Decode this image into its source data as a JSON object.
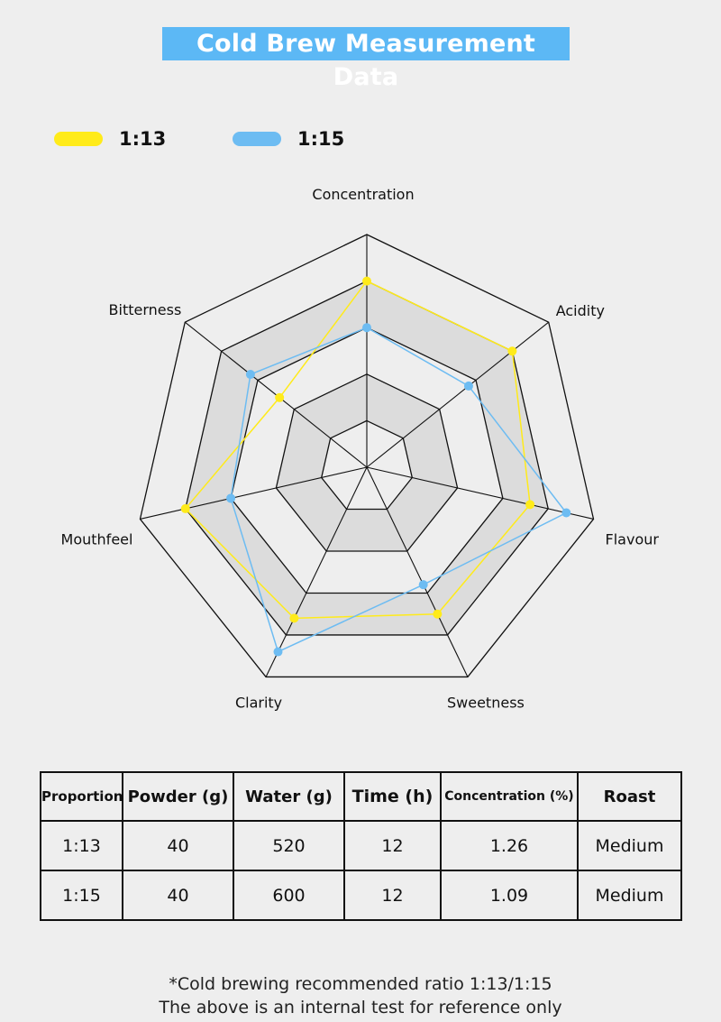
{
  "title": "Cold Brew Measurement Data",
  "legend": [
    {
      "label": "1:13",
      "color": "#ffeb1a"
    },
    {
      "label": "1:15",
      "color": "#6dbcf2"
    }
  ],
  "chart_data": {
    "type": "radar",
    "axes": [
      "Concentration",
      "Acidity",
      "Flavour",
      "Sweetness",
      "Clarity",
      "Mouthfeel",
      "Bitterness"
    ],
    "levels": 5,
    "alternating_band_fill": "#dcdcdc",
    "series": [
      {
        "name": "1:13",
        "color": "#ffeb1a",
        "values": [
          4.0,
          4.0,
          3.6,
          3.5,
          3.6,
          4.0,
          2.4
        ]
      },
      {
        "name": "1:15",
        "color": "#6dbcf2",
        "values": [
          3.0,
          2.8,
          4.4,
          2.8,
          4.4,
          3.0,
          3.2
        ]
      }
    ]
  },
  "table": {
    "headers": [
      "Proportion",
      "Powder (g)",
      "Water (g)",
      "Time (h)",
      "Concentration (%)",
      "Roast"
    ],
    "rows": [
      [
        "1:13",
        "40",
        "520",
        "12",
        "1.26",
        "Medium"
      ],
      [
        "1:15",
        "40",
        "600",
        "12",
        "1.09",
        "Medium"
      ]
    ]
  },
  "footnote": {
    "line1": "*Cold brewing recommended ratio 1:13/1:15",
    "line2": "The above is an internal test for reference only"
  }
}
